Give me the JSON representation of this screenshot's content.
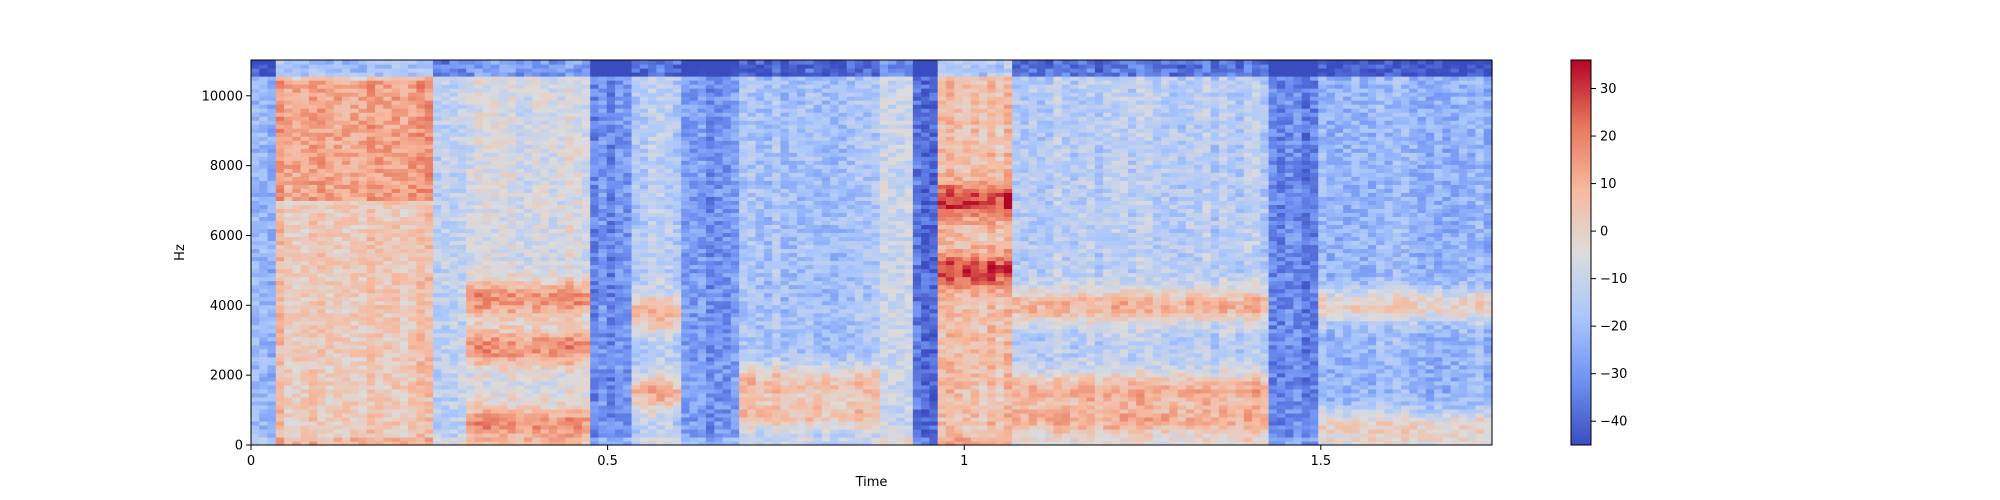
{
  "chart_data": {
    "type": "heatmap",
    "title": "",
    "xlabel": "Time",
    "ylabel": "Hz",
    "xlim": [
      0,
      1.74
    ],
    "ylim": [
      0,
      11025
    ],
    "x_ticks": [
      {
        "value": 0,
        "label": "0"
      },
      {
        "value": 0.5,
        "label": "0.5"
      },
      {
        "value": 1,
        "label": "1"
      },
      {
        "value": 1.5,
        "label": "1.5"
      }
    ],
    "y_ticks": [
      {
        "value": 0,
        "label": "0"
      },
      {
        "value": 2000,
        "label": "2000"
      },
      {
        "value": 4000,
        "label": "4000"
      },
      {
        "value": 6000,
        "label": "6000"
      },
      {
        "value": 8000,
        "label": "8000"
      },
      {
        "value": 10000,
        "label": "10000"
      }
    ],
    "colormap": "coolwarm",
    "colormap_stops": [
      "#3b4cc0",
      "#6f92f3",
      "#aac7fd",
      "#dddcdc",
      "#f7b89c",
      "#e7745b",
      "#b40426"
    ],
    "colorbar": {
      "range": [
        -45,
        36
      ],
      "ticks": [
        {
          "value": 30,
          "label": "30"
        },
        {
          "value": 20,
          "label": "20"
        },
        {
          "value": 10,
          "label": "10"
        },
        {
          "value": 0,
          "label": "0"
        },
        {
          "value": -10,
          "label": "−10"
        },
        {
          "value": -20,
          "label": "−20"
        },
        {
          "value": -30,
          "label": "−30"
        },
        {
          "value": -40,
          "label": "−40"
        }
      ]
    },
    "grid": false,
    "segments": [
      {
        "t0": 0.0,
        "t1": 0.04,
        "level": -22
      },
      {
        "t0": 0.04,
        "t1": 0.25,
        "level": 4,
        "hf_boost": 10
      },
      {
        "t0": 0.25,
        "t1": 0.3,
        "level": -12
      },
      {
        "t0": 0.3,
        "t1": 0.48,
        "level": -6,
        "formants": [
          600,
          2800,
          4200
        ]
      },
      {
        "t0": 0.48,
        "t1": 0.53,
        "level": -32
      },
      {
        "t0": 0.53,
        "t1": 0.6,
        "level": -14,
        "formants": [
          1500,
          3800
        ]
      },
      {
        "t0": 0.6,
        "t1": 0.68,
        "level": -30
      },
      {
        "t0": 0.68,
        "t1": 0.88,
        "level": -18,
        "formants": [
          900,
          1800
        ]
      },
      {
        "t0": 0.88,
        "t1": 0.93,
        "level": -10
      },
      {
        "t0": 0.93,
        "t1": 0.96,
        "level": -38
      },
      {
        "t0": 0.96,
        "t1": 1.07,
        "level": 6,
        "formants": [
          5000,
          7000
        ]
      },
      {
        "t0": 1.07,
        "t1": 1.43,
        "level": -14,
        "formants": [
          700,
          1600,
          4000
        ]
      },
      {
        "t0": 1.43,
        "t1": 1.5,
        "level": -34
      },
      {
        "t0": 1.5,
        "t1": 1.74,
        "level": -22,
        "formants": [
          500,
          4000
        ]
      }
    ]
  }
}
